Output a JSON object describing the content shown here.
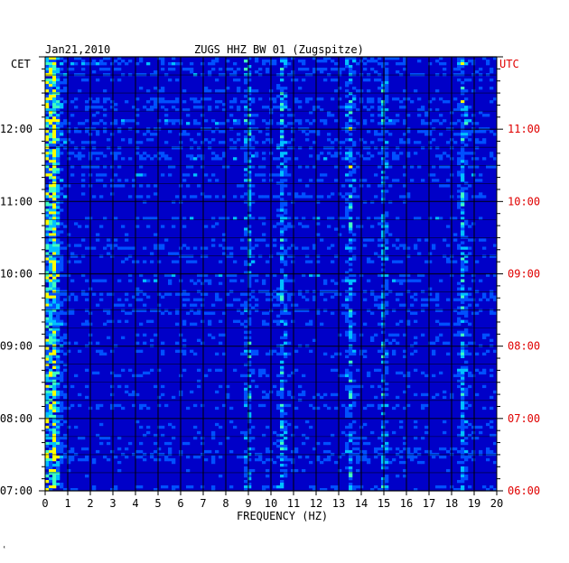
{
  "header": {
    "date": "Jan21,2010",
    "station": "ZUGS HHZ BW 01 (Zugspitze)",
    "left_timezone": "CET",
    "right_timezone": "UTC"
  },
  "footer": {
    "mark": "ʽ"
  },
  "colors": {
    "background": "#0000c8",
    "grid": "#000000",
    "utc_text": "#e00000"
  },
  "chart_data": {
    "type": "heatmap",
    "title": "ZUGS HHZ BW 01 (Zugspitze)",
    "xlabel": "FREQUENCY (HZ)",
    "xlim": [
      0,
      20
    ],
    "x_ticks": [
      "0",
      "1",
      "2",
      "3",
      "4",
      "5",
      "6",
      "7",
      "8",
      "9",
      "10",
      "11",
      "12",
      "13",
      "14",
      "15",
      "16",
      "17",
      "18",
      "19",
      "20"
    ],
    "time_window_cet_hours": [
      7.0,
      13.0
    ],
    "y_ticks_left": [
      {
        "label": "12:00",
        "hour": 12
      },
      {
        "label": "11:00",
        "hour": 11
      },
      {
        "label": "10:00",
        "hour": 10
      },
      {
        "label": "09:00",
        "hour": 9
      },
      {
        "label": "08:00",
        "hour": 8
      },
      {
        "label": "07:00",
        "hour": 7
      }
    ],
    "y_ticks_right": [
      {
        "label": "11:00",
        "hour": 12
      },
      {
        "label": "10:00",
        "hour": 11
      },
      {
        "label": "09:00",
        "hour": 10
      },
      {
        "label": "08:00",
        "hour": 9
      },
      {
        "label": "07:00",
        "hour": 8
      },
      {
        "label": "06:00",
        "hour": 7
      }
    ],
    "dominant_features_hz": [
      0.4,
      9.0,
      10.5,
      13.5,
      15.0,
      18.5
    ]
  }
}
